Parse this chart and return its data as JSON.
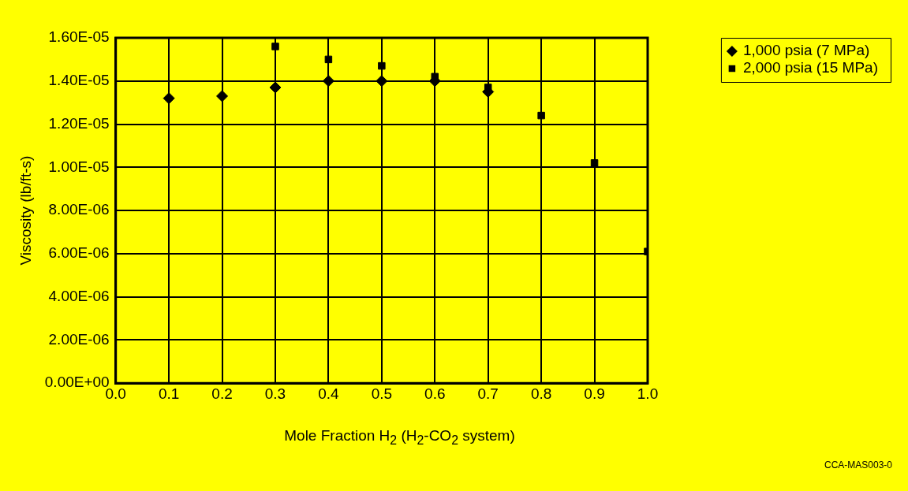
{
  "chart_data": {
    "type": "scatter",
    "xlabel": "Mole Fraction H$_{2}$ (H$_{2}$-CO$_{2}$ system)",
    "ylabel": "Viscosity (lb/ft-s)",
    "xlim": [
      0,
      1
    ],
    "xticks": [
      {
        "value": 0,
        "label": "0.0"
      },
      0.1,
      0.2,
      0.3,
      0.4,
      0.5,
      0.6,
      0.7,
      0.8,
      0.9,
      {
        "value": 1,
        "label": "1.0"
      }
    ],
    "ylim": [
      0,
      1.6e-05
    ],
    "yticks": [
      {
        "value": 0,
        "label": "0.00E+00"
      },
      {
        "value": 2e-06,
        "label": "2.00E-06"
      },
      {
        "value": 4e-06,
        "label": "4.00E-06"
      },
      {
        "value": 6e-06,
        "label": "6.00E-06"
      },
      {
        "value": 8e-06,
        "label": "8.00E-06"
      },
      {
        "value": 1e-05,
        "label": "1.00E-05"
      },
      {
        "value": 1.2e-05,
        "label": "1.20E-05"
      },
      {
        "value": 1.4e-05,
        "label": "1.40E-05"
      },
      {
        "value": 1.6e-05,
        "label": "1.60E-05"
      }
    ],
    "grid": true,
    "legend": "top right",
    "series": [
      {
        "name": "1,000 psia (7 MPa)",
        "color": "#000000",
        "marker": "diamond",
        "x": [
          0.1,
          0.2,
          0.3,
          0.4,
          0.5,
          0.6,
          0.7
        ],
        "values": [
          1.32e-05,
          1.33e-05,
          1.37e-05,
          1.4e-05,
          1.4e-05,
          1.4e-05,
          1.35e-05
        ]
      },
      {
        "name": "2,000 psia (15 MPa)",
        "color": "#000000",
        "marker": "square",
        "x": [
          0.3,
          0.4,
          0.5,
          0.6,
          0.7,
          0.8,
          0.9,
          1.0
        ],
        "values": [
          1.56e-05,
          1.5e-05,
          1.47e-05,
          1.42e-05,
          1.37e-05,
          1.24e-05,
          1.02e-05,
          6.1e-06
        ]
      }
    ],
    "annotations": [
      "CCA-MAS003-0"
    ]
  }
}
